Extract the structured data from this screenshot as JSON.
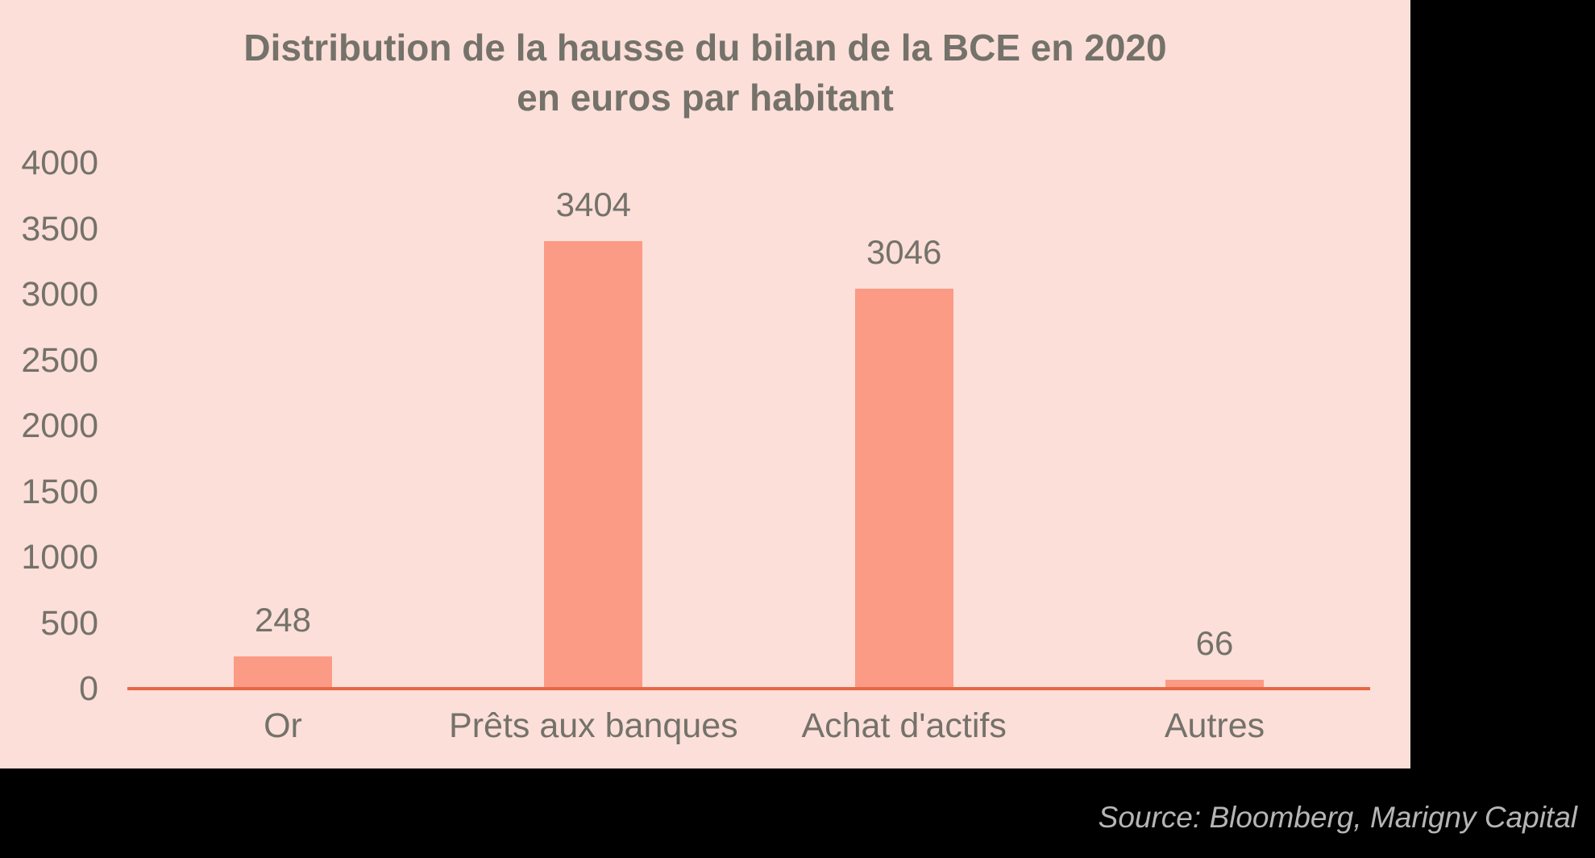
{
  "chart_data": {
    "type": "bar",
    "title": "Distribution de la hausse du bilan de la BCE en 2020 en euros par habitant",
    "title_lines": [
      "Distribution de la hausse du bilan de la BCE en 2020",
      "en euros par habitant"
    ],
    "categories": [
      "Or",
      "Prêts aux banques",
      "Achat d'actifs",
      "Autres"
    ],
    "values": [
      248,
      3404,
      3046,
      66
    ],
    "xlabel": "",
    "ylabel": "",
    "ylim": [
      0,
      4000
    ],
    "yticks": [
      0,
      500,
      1000,
      1500,
      2000,
      2500,
      3000,
      3500,
      4000
    ],
    "grid": false,
    "legend_position": "none",
    "bar_value_labels_shown": true
  },
  "source_note": "Source: Bloomberg, Marigny Capital",
  "colors": {
    "canvas_background": "#000000",
    "panel_background": "#FBDFD8",
    "bar_fill": "#FB9A85",
    "axis_line": "#E66843",
    "chart_text": "#74726A",
    "source_text": "#B5B5B5"
  }
}
